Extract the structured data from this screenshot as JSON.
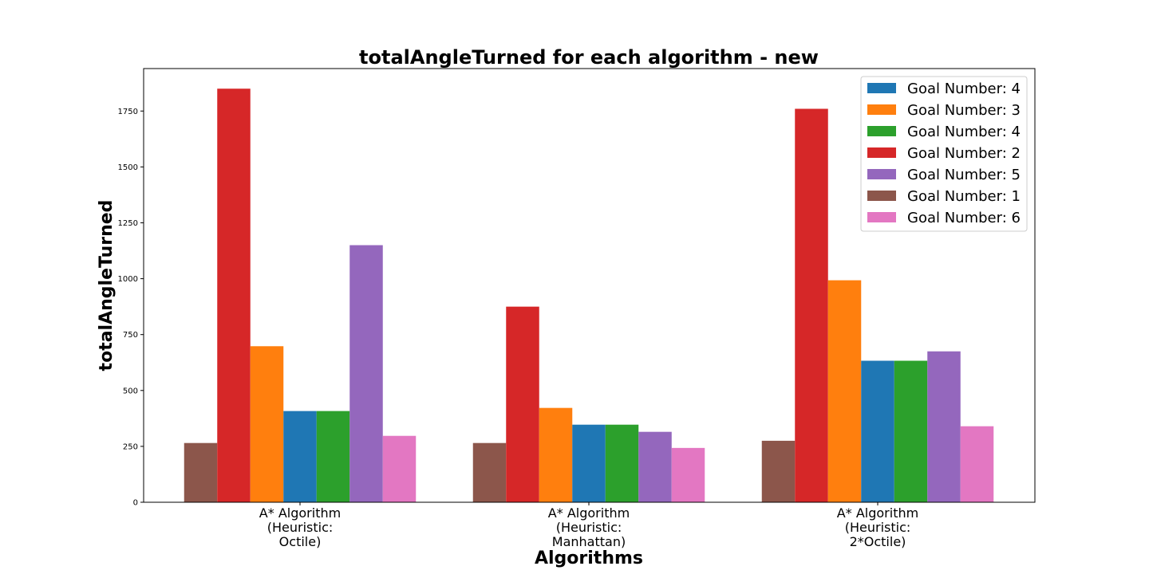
{
  "chart_data": {
    "type": "bar",
    "title": "totalAngleTurned for each algorithm - new",
    "xlabel": "Algorithms",
    "ylabel": "totalAngleTurned",
    "categories": [
      [
        "A* Algorithm",
        "(Heuristic:",
        "Octile)"
      ],
      [
        "A* Algorithm",
        "(Heuristic:",
        "Manhattan)"
      ],
      [
        "A* Algorithm",
        "(Heuristic:",
        "2*Octile)"
      ]
    ],
    "ylim": [
      0,
      1940
    ],
    "yticks": [
      0,
      250,
      500,
      750,
      1000,
      1250,
      1500,
      1750
    ],
    "grid": false,
    "legend_position": "top-right",
    "series": [
      {
        "name": "Goal Number: 4",
        "color": "#1f77b4",
        "values": [
          408,
          347,
          633
        ]
      },
      {
        "name": "Goal Number: 3",
        "color": "#ff7f0e",
        "values": [
          698,
          422,
          993
        ]
      },
      {
        "name": "Goal Number: 4",
        "color": "#2ca02c",
        "values": [
          408,
          347,
          633
        ]
      },
      {
        "name": "Goal Number: 2",
        "color": "#d62728",
        "values": [
          1850,
          875,
          1760
        ]
      },
      {
        "name": "Goal Number: 5",
        "color": "#9467bd",
        "values": [
          1150,
          315,
          675
        ]
      },
      {
        "name": "Goal Number: 1",
        "color": "#8c564b",
        "values": [
          265,
          265,
          275
        ]
      },
      {
        "name": "Goal Number: 6",
        "color": "#e377c2",
        "values": [
          297,
          243,
          340
        ]
      }
    ],
    "bar_order_left_to_right": [
      5,
      3,
      1,
      0,
      2,
      4,
      6
    ]
  }
}
